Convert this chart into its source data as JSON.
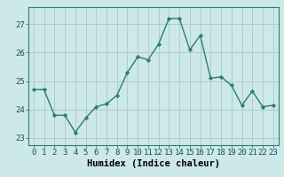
{
  "x": [
    0,
    1,
    2,
    3,
    4,
    5,
    6,
    7,
    8,
    9,
    10,
    11,
    12,
    13,
    14,
    15,
    16,
    17,
    18,
    19,
    20,
    21,
    22,
    23
  ],
  "y": [
    24.7,
    24.7,
    23.8,
    23.8,
    23.2,
    23.7,
    24.1,
    24.2,
    24.5,
    25.3,
    25.85,
    25.75,
    26.3,
    27.2,
    27.2,
    26.1,
    26.6,
    25.1,
    25.15,
    24.85,
    24.15,
    24.65,
    24.1,
    24.15
  ],
  "line_color": "#2e7d6e",
  "marker": "D",
  "marker_size": 2.2,
  "bg_color": "#cce8e8",
  "grid_color": "#b0cccc",
  "xlabel": "Humidex (Indice chaleur)",
  "xlim": [
    -0.5,
    23.5
  ],
  "ylim": [
    22.75,
    27.6
  ],
  "yticks": [
    23,
    24,
    25,
    26,
    27
  ],
  "xtick_labels": [
    "0",
    "1",
    "2",
    "3",
    "4",
    "5",
    "6",
    "7",
    "8",
    "9",
    "10",
    "11",
    "12",
    "13",
    "14",
    "15",
    "16",
    "17",
    "18",
    "19",
    "20",
    "21",
    "22",
    "23"
  ],
  "xlabel_fontsize": 7.5,
  "tick_fontsize": 6.5,
  "line_width": 1.0
}
